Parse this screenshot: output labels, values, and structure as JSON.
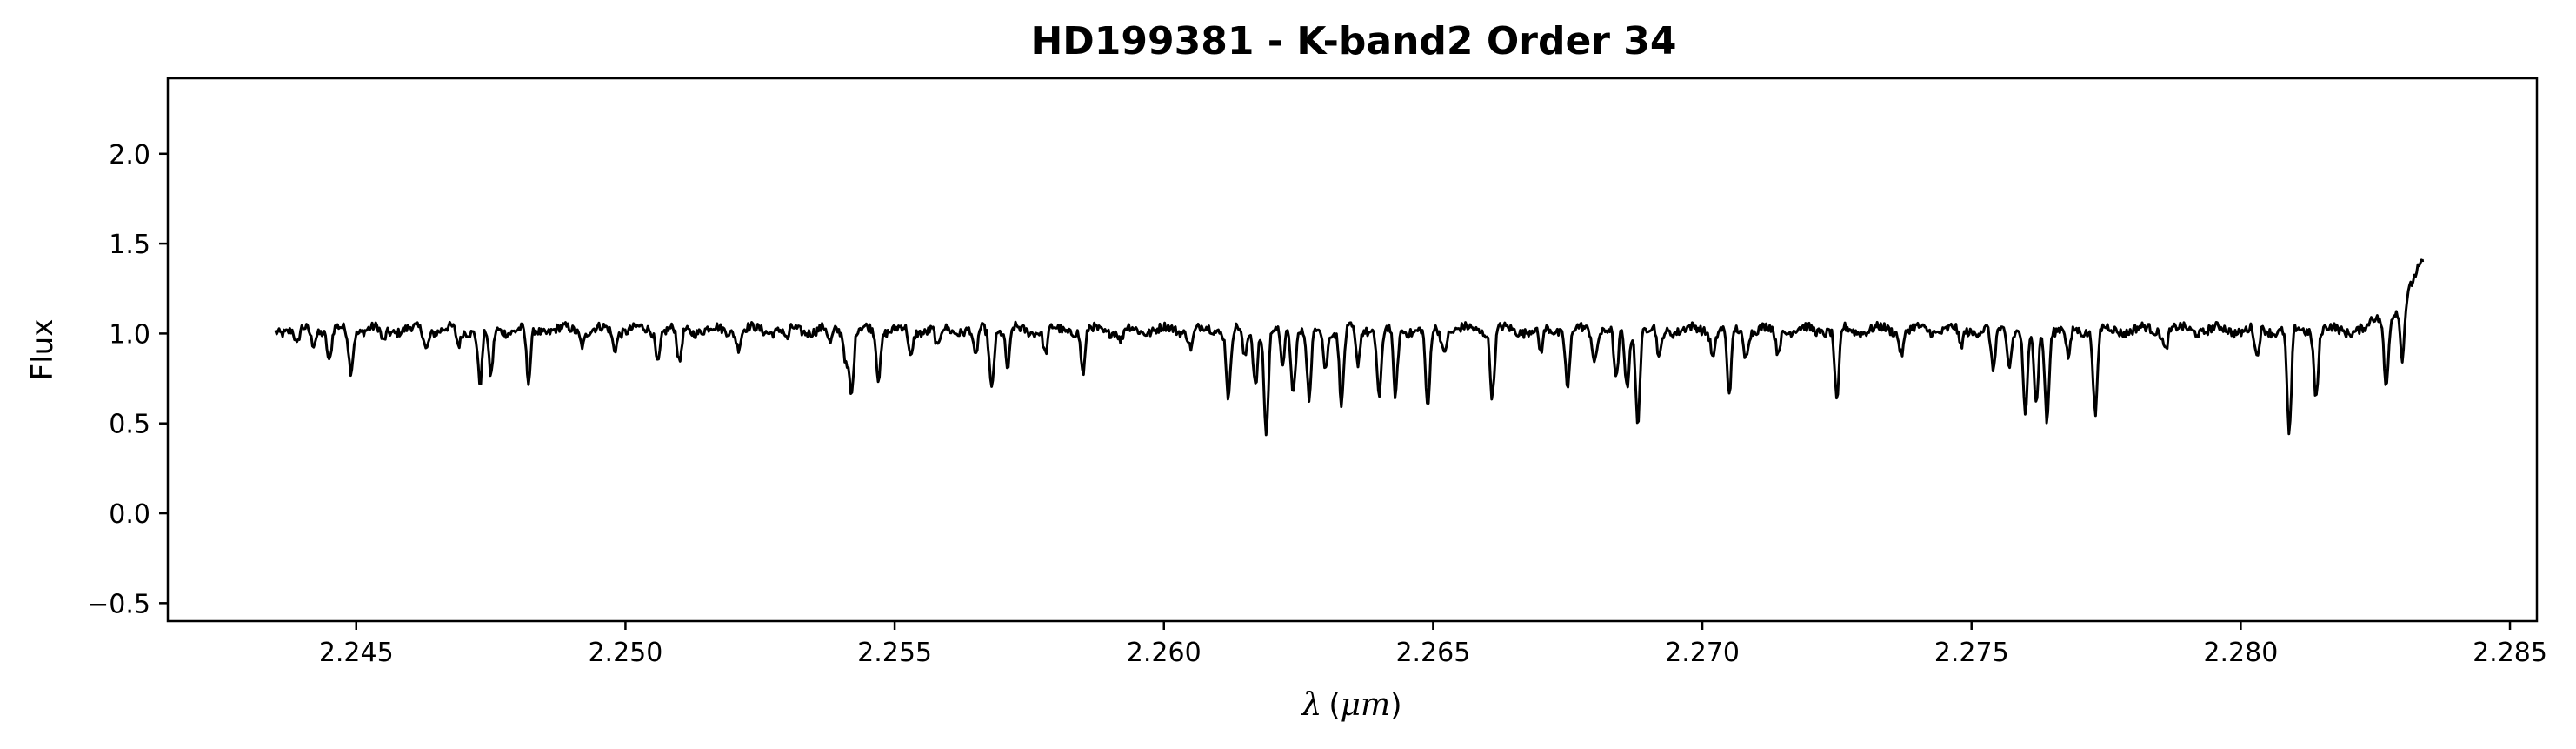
{
  "chart_data": {
    "type": "line",
    "title": "HD199381 - K-band2 Order 34",
    "xlabel": "λ (μm)",
    "xlabel_parts": {
      "symbol": "λ",
      "open": "(",
      "unit": "μm",
      "close": ")"
    },
    "ylabel": "Flux",
    "xlim": [
      2.2415,
      2.2855
    ],
    "ylim": [
      -0.6,
      2.42
    ],
    "xticks": [
      2.245,
      2.25,
      2.255,
      2.26,
      2.265,
      2.27,
      2.275,
      2.28,
      2.285
    ],
    "xtick_labels": [
      "2.245",
      "2.250",
      "2.255",
      "2.260",
      "2.265",
      "2.270",
      "2.275",
      "2.280",
      "2.285"
    ],
    "yticks": [
      -0.5,
      0.0,
      0.5,
      1.0,
      1.5,
      2.0
    ],
    "ytick_labels": [
      "−0.5",
      "0.0",
      "0.5",
      "1.0",
      "1.5",
      "2.0"
    ],
    "grid": false,
    "line_color": "#000000",
    "series": [
      {
        "x_range": [
          2.2435,
          2.2834
        ],
        "continuum": 1.02,
        "absorption_lines": [
          [
            2.2439,
            0.92
          ],
          [
            2.2442,
            0.95
          ],
          [
            2.2445,
            0.84
          ],
          [
            2.2449,
            0.8
          ],
          [
            2.2455,
            0.95
          ],
          [
            2.2463,
            0.92
          ],
          [
            2.2469,
            0.93
          ],
          [
            2.2473,
            0.72
          ],
          [
            2.2475,
            0.75
          ],
          [
            2.2482,
            0.72
          ],
          [
            2.2492,
            0.95
          ],
          [
            2.2498,
            0.92
          ],
          [
            2.2506,
            0.85
          ],
          [
            2.251,
            0.82
          ],
          [
            2.2521,
            0.93
          ],
          [
            2.253,
            0.95
          ],
          [
            2.2538,
            0.93
          ],
          [
            2.2541,
            0.85
          ],
          [
            2.2542,
            0.67
          ],
          [
            2.2547,
            0.76
          ],
          [
            2.2553,
            0.86
          ],
          [
            2.2558,
            0.9
          ],
          [
            2.2565,
            0.85
          ],
          [
            2.2568,
            0.7
          ],
          [
            2.2571,
            0.8
          ],
          [
            2.2578,
            0.88
          ],
          [
            2.2585,
            0.77
          ],
          [
            2.2592,
            0.95
          ],
          [
            2.2605,
            0.93
          ],
          [
            2.2612,
            0.65
          ],
          [
            2.2615,
            0.85
          ],
          [
            2.2617,
            0.72
          ],
          [
            2.2619,
            0.45
          ],
          [
            2.2622,
            0.82
          ],
          [
            2.2624,
            0.68
          ],
          [
            2.2627,
            0.63
          ],
          [
            2.263,
            0.8
          ],
          [
            2.2633,
            0.62
          ],
          [
            2.2636,
            0.82
          ],
          [
            2.264,
            0.65
          ],
          [
            2.2643,
            0.64
          ],
          [
            2.2649,
            0.56
          ],
          [
            2.2652,
            0.9
          ],
          [
            2.2661,
            0.65
          ],
          [
            2.267,
            0.88
          ],
          [
            2.2675,
            0.7
          ],
          [
            2.268,
            0.85
          ],
          [
            2.2684,
            0.72
          ],
          [
            2.2686,
            0.7
          ],
          [
            2.2688,
            0.52
          ],
          [
            2.2692,
            0.85
          ],
          [
            2.2702,
            0.88
          ],
          [
            2.2705,
            0.65
          ],
          [
            2.2708,
            0.88
          ],
          [
            2.2714,
            0.9
          ],
          [
            2.2725,
            0.6
          ],
          [
            2.2737,
            0.9
          ],
          [
            2.2748,
            0.92
          ],
          [
            2.2754,
            0.78
          ],
          [
            2.2757,
            0.83
          ],
          [
            2.276,
            0.52
          ],
          [
            2.2762,
            0.6
          ],
          [
            2.2764,
            0.53
          ],
          [
            2.2768,
            0.85
          ],
          [
            2.2773,
            0.55
          ],
          [
            2.2786,
            0.92
          ],
          [
            2.2803,
            0.85
          ],
          [
            2.2809,
            0.42
          ],
          [
            2.2814,
            0.65
          ],
          [
            2.2827,
            0.65
          ],
          [
            2.283,
            0.7
          ]
        ],
        "red_edge_rise": [
          [
            2.2824,
            1.07
          ],
          [
            2.2828,
            1.1
          ],
          [
            2.2831,
            1.2
          ],
          [
            2.2833,
            1.38
          ],
          [
            2.2834,
            1.42
          ]
        ]
      }
    ]
  }
}
